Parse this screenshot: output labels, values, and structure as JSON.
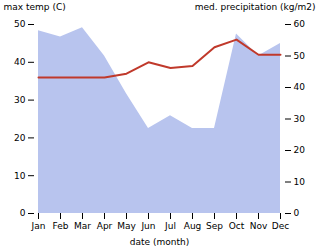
{
  "chart_data": {
    "type": "line",
    "categories": [
      "Jan",
      "Feb",
      "Mar",
      "Apr",
      "May",
      "Jun",
      "Jul",
      "Aug",
      "Sep",
      "Oct",
      "Nov",
      "Dec"
    ],
    "series": [
      {
        "type": "area",
        "axis": "y2",
        "color": "#b8c4ee",
        "values": [
          58,
          56,
          59,
          50,
          38,
          27,
          31,
          27,
          27,
          57,
          50,
          54
        ]
      },
      {
        "type": "line",
        "color": "#c0392b",
        "values": [
          36,
          36,
          36,
          36,
          37,
          40,
          38.5,
          39,
          44,
          46,
          42,
          42
        ]
      }
    ],
    "xlabel": "date (month)",
    "ylabel": "max temp (C)",
    "y2label": "med. precipitation (kg/m2)",
    "ylim": [
      0,
      50
    ],
    "yticks": [
      0,
      10,
      20,
      30,
      40,
      50
    ],
    "y2lim": [
      0,
      60
    ],
    "y2ticks": [
      0,
      10,
      20,
      30,
      40,
      50,
      60
    ],
    "grid": false
  }
}
